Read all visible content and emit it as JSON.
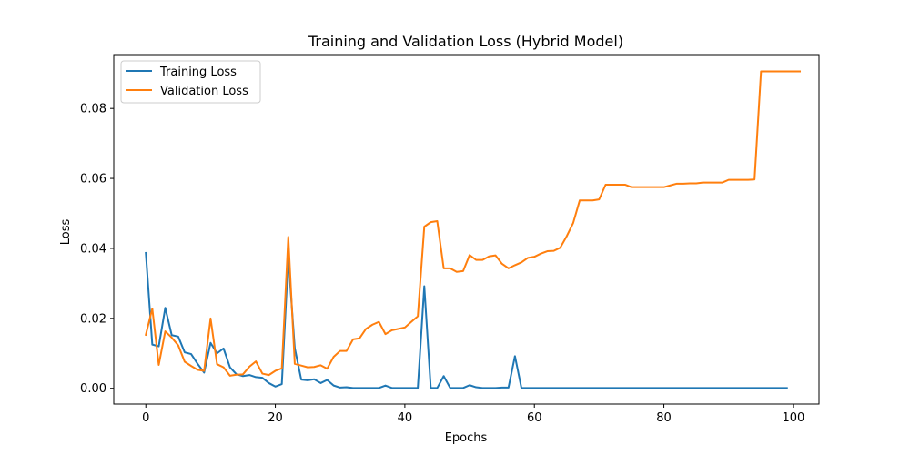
{
  "chart_data": {
    "type": "line",
    "title": "Training and Validation Loss (Hybrid Model)",
    "xlabel": "Epochs",
    "ylabel": "Loss",
    "xlim": [
      -4.95,
      103.95
    ],
    "ylim": [
      -0.0045,
      0.0954
    ],
    "xticks": [
      0,
      20,
      40,
      60,
      80,
      100
    ],
    "yticks": [
      0.0,
      0.02,
      0.04,
      0.06,
      0.08
    ],
    "xtick_labels": [
      "0",
      "20",
      "40",
      "60",
      "80",
      "100"
    ],
    "ytick_labels": [
      "0.00",
      "0.02",
      "0.04",
      "0.06",
      "0.08"
    ],
    "grid": false,
    "legend_position": "top-left",
    "series": [
      {
        "name": "Training Loss",
        "color": "#1f77b4",
        "values": [
          0.0387,
          0.0125,
          0.012,
          0.023,
          0.0152,
          0.0148,
          0.0103,
          0.0098,
          0.007,
          0.0045,
          0.013,
          0.01,
          0.0114,
          0.006,
          0.004,
          0.0035,
          0.0038,
          0.0032,
          0.003,
          0.0015,
          0.0005,
          0.0012,
          0.0375,
          0.0115,
          0.0025,
          0.0023,
          0.0026,
          0.0015,
          0.0024,
          0.0008,
          0.0002,
          0.0003,
          0.0001,
          0.0001,
          0.0001,
          0.0001,
          0.0001,
          0.0008,
          0.0001,
          0.0001,
          0.0001,
          0.0001,
          0.0001,
          0.0292,
          0.0001,
          0.0001,
          0.0035,
          0.0001,
          0.0001,
          0.0001,
          0.0009,
          0.0003,
          0.0001,
          0.0001,
          0.0001,
          0.0002,
          0.0002,
          0.0092,
          0.0001,
          0.0001,
          0.0001,
          0.0001,
          0.0001,
          0.0001,
          0.0001,
          0.0001,
          0.0001,
          0.0001,
          0.0001,
          0.0001,
          0.0001,
          0.0001,
          0.0001,
          0.0001,
          0.0001,
          0.0001,
          0.0001,
          0.0001,
          0.0001,
          0.0001,
          0.0001,
          0.0001,
          0.0001,
          0.0001,
          0.0001,
          0.0001,
          0.0001,
          0.0001,
          0.0001,
          0.0001,
          0.0001,
          0.0001,
          0.0001,
          0.0001,
          0.0001,
          0.0001,
          0.0001,
          0.0001,
          0.0001,
          0.0001
        ]
      },
      {
        "name": "Validation Loss",
        "color": "#ff7f0e",
        "values": [
          0.0153,
          0.0228,
          0.0067,
          0.0163,
          0.0145,
          0.0123,
          0.0076,
          0.0064,
          0.0053,
          0.005,
          0.02,
          0.0069,
          0.006,
          0.0036,
          0.0039,
          0.004,
          0.0062,
          0.0077,
          0.0042,
          0.0038,
          0.005,
          0.0057,
          0.0433,
          0.007,
          0.0065,
          0.006,
          0.0061,
          0.0066,
          0.0056,
          0.009,
          0.0107,
          0.0107,
          0.014,
          0.0143,
          0.017,
          0.0182,
          0.019,
          0.0155,
          0.0166,
          0.017,
          0.0174,
          0.019,
          0.0206,
          0.0462,
          0.0475,
          0.0478,
          0.0343,
          0.0343,
          0.0333,
          0.0335,
          0.0381,
          0.0367,
          0.0367,
          0.0377,
          0.038,
          0.0356,
          0.0343,
          0.0352,
          0.036,
          0.0373,
          0.0376,
          0.0385,
          0.0392,
          0.0393,
          0.0402,
          0.0435,
          0.0473,
          0.0537,
          0.0537,
          0.0537,
          0.054,
          0.0582,
          0.0582,
          0.0582,
          0.0582,
          0.0575,
          0.0575,
          0.0575,
          0.0575,
          0.0575,
          0.0575,
          0.058,
          0.0585,
          0.0585,
          0.0586,
          0.0586,
          0.0588,
          0.0588,
          0.0588,
          0.0588,
          0.0596,
          0.0596,
          0.0596,
          0.0596,
          0.0597,
          0.0906,
          0.0906,
          0.0906,
          0.0906,
          0.0906,
          0.0906,
          0.0906
        ]
      }
    ]
  }
}
